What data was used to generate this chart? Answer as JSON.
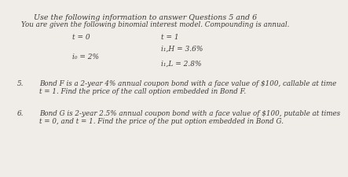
{
  "bg_color": "#f0ede8",
  "text_color": "#3a3a3a",
  "title_line": "Use the following information to answer Questions 5 and 6",
  "subtitle_line": "You are given the following binomial interest model. Compounding is annual.",
  "t0_label": "t = 0",
  "t1_label": "t = 1",
  "i0_label": "i₀ = 2%",
  "i1H_label": "i₁,H = 3.6%",
  "i1L_label": "i₁,L = 2.8%",
  "q5_num": "5.",
  "q5_text_line1": "Bond F is a 2-year 4% annual coupon bond with a face value of $100, callable at time",
  "q5_text_line2": "t = 1. Find the price of the call option embedded in Bond F.",
  "q6_num": "6.",
  "q6_text_line1": "Bond G is 2-year 2.5% annual coupon bond with a face value of $100, putable at times",
  "q6_text_line2": "t = 0, and t = 1. Find the price of the put option embedded in Bond G.",
  "fs_title": 6.8,
  "fs_body": 6.3,
  "fs_math": 6.5
}
